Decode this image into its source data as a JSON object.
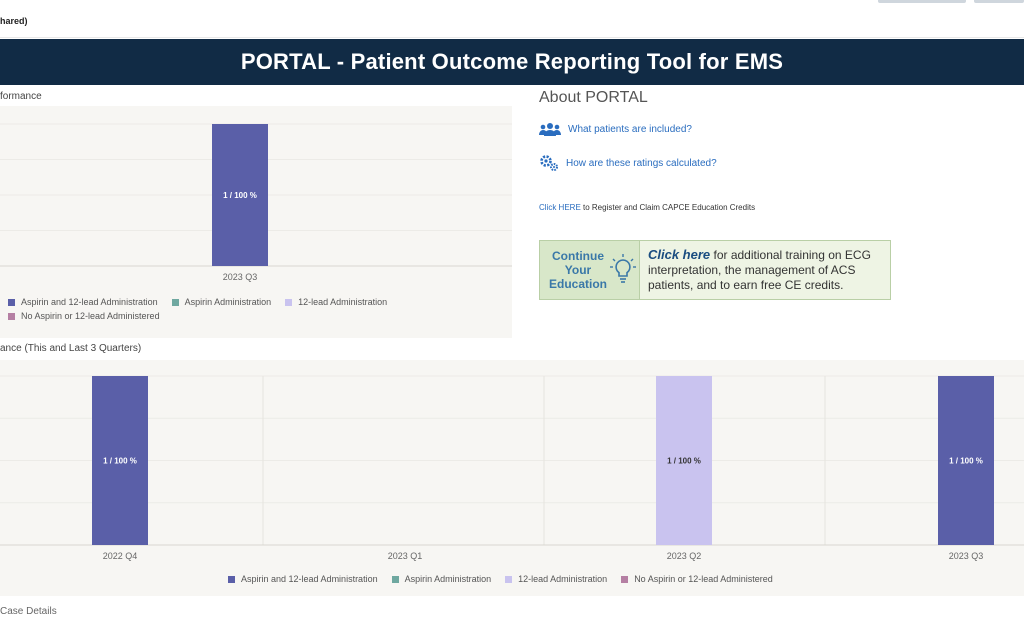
{
  "top": {
    "tag": "hared)"
  },
  "banner": {
    "title": "PORTAL - Patient Outcome Reporting Tool for EMS"
  },
  "colors": {
    "aspirin_12lead": "#5a5fa8",
    "aspirin_only": "#6fa8a0",
    "lead12_only": "#c9c3ef",
    "none": "#b57fa3",
    "banner": "#112b45"
  },
  "chart1": {
    "title": "formance",
    "chart_data": {
      "type": "bar",
      "categories": [
        "2023 Q3"
      ],
      "series": [
        {
          "name": "Aspirin and 12-lead Administration",
          "values": [
            100
          ],
          "labels": [
            "1 / 100 %"
          ]
        }
      ],
      "ylim": [
        0,
        100
      ]
    },
    "legend": [
      {
        "label": "Aspirin and 12-lead Administration",
        "color": "#5a5fa8"
      },
      {
        "label": "Aspirin Administration",
        "color": "#6fa8a0"
      },
      {
        "label": "12-lead Administration",
        "color": "#c9c3ef"
      },
      {
        "label": "No Aspirin or 12-lead Administered",
        "color": "#b57fa3"
      }
    ]
  },
  "about": {
    "title": "About PORTAL",
    "links": [
      {
        "label": "What patients are included?",
        "icon": "users-icon"
      },
      {
        "label": "How are these ratings calculated?",
        "icon": "gears-icon"
      }
    ],
    "capce_link": "Click HERE",
    "capce_text": " to Register and Claim CAPCE Education Credits"
  },
  "education": {
    "left_line1": "Continue",
    "left_line2": "Your",
    "left_line3": "Education",
    "click": "Click here",
    "rest": " for additional training on ECG interpretation, the management of ACS patients, and to earn free CE credits."
  },
  "chart2": {
    "title": "ance (This and Last 3 Quarters)",
    "chart_data": {
      "type": "bar",
      "categories": [
        "2022 Q4",
        "2023 Q1",
        "2023 Q2",
        "2023 Q3"
      ],
      "bars": [
        {
          "category": "2022 Q4",
          "series": "Aspirin and 12-lead Administration",
          "value": 100,
          "label": "1 / 100 %"
        },
        {
          "category": "2023 Q2",
          "series": "12-lead Administration",
          "value": 100,
          "label": "1 / 100 %"
        },
        {
          "category": "2023 Q3",
          "series": "Aspirin and 12-lead Administration",
          "value": 100,
          "label": "1 / 100 %"
        }
      ],
      "ylim": [
        0,
        100
      ]
    },
    "legend": [
      {
        "label": "Aspirin and 12-lead Administration",
        "color": "#5a5fa8"
      },
      {
        "label": "Aspirin Administration",
        "color": "#6fa8a0"
      },
      {
        "label": "12-lead Administration",
        "color": "#c9c3ef"
      },
      {
        "label": "No Aspirin or 12-lead Administered",
        "color": "#b57fa3"
      }
    ]
  },
  "footer": {
    "title": "Case Details"
  }
}
